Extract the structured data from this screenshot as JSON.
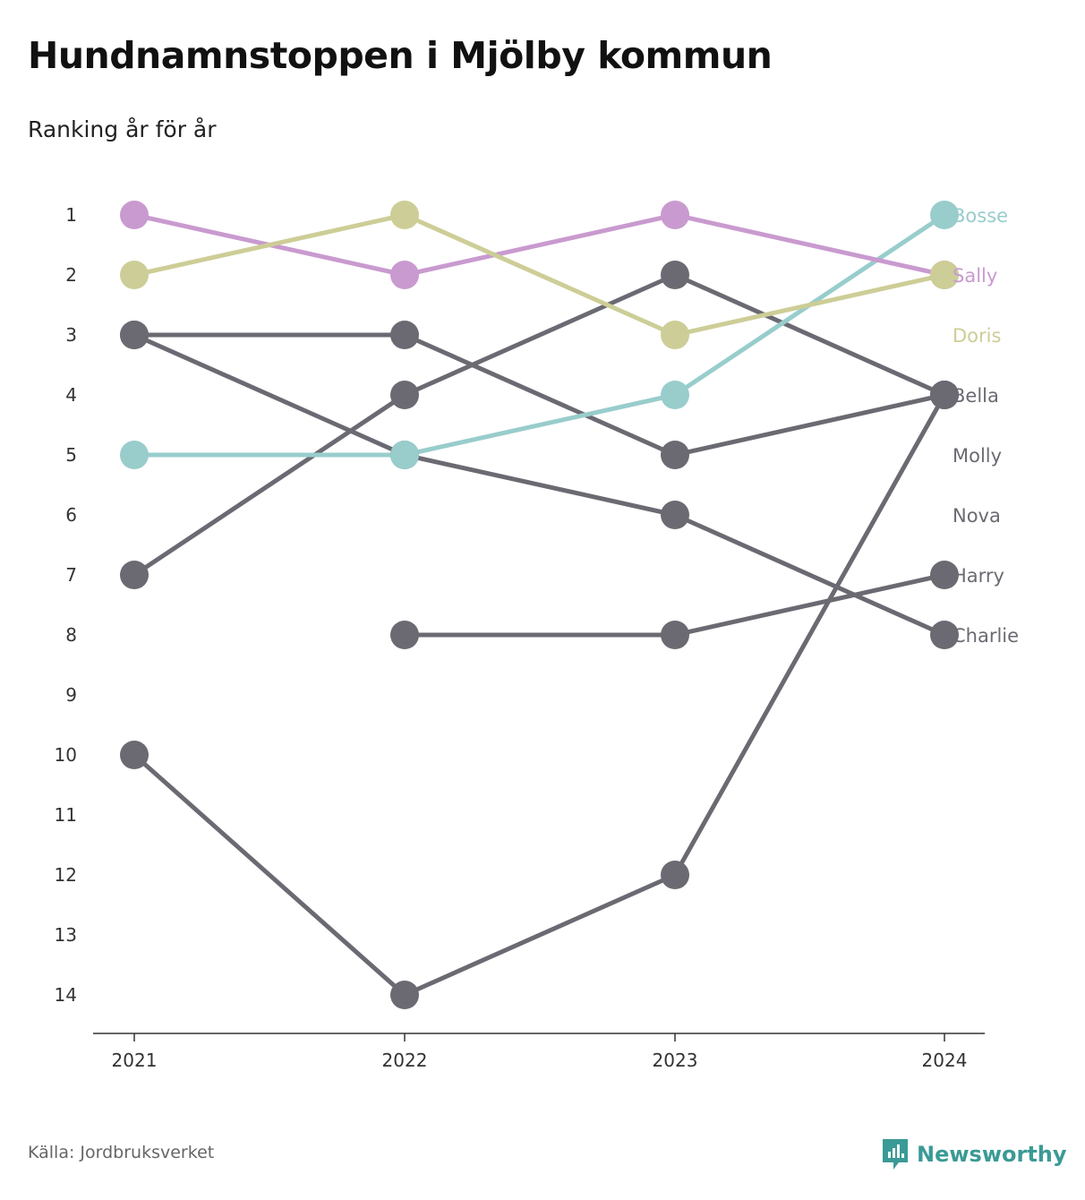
{
  "title": "Hundnamnstoppen i Mjölby kommun",
  "subtitle": "Ranking år för år",
  "source": "Källa: Jordbruksverket",
  "brand": "Newsworthy",
  "colors": {
    "pink": "#c99acf",
    "olive": "#cdcd97",
    "teal": "#98cdcc",
    "gray": "#6b6a72",
    "brand": "#3a9a96"
  },
  "chart_data": {
    "type": "line",
    "x": [
      "2021",
      "2022",
      "2023",
      "2024"
    ],
    "ylim": [
      1,
      14
    ],
    "y_inverted": true,
    "yticks": [
      "1",
      "2",
      "3",
      "4",
      "5",
      "6",
      "7",
      "8",
      "9",
      "10",
      "11",
      "12",
      "13",
      "14"
    ],
    "series": [
      {
        "name": "Bosse",
        "color": "#98cdcc",
        "values": [
          5,
          5,
          4,
          1
        ]
      },
      {
        "name": "Sally",
        "color": "#c99acf",
        "values": [
          1,
          2,
          1,
          2
        ]
      },
      {
        "name": "Doris",
        "color": "#cdcd97",
        "values": [
          2,
          1,
          3,
          2
        ]
      },
      {
        "name": "Bella",
        "color": "#6b6a72",
        "values": [
          3,
          3,
          5,
          4
        ]
      },
      {
        "name": "Molly",
        "color": "#6b6a72",
        "values": [
          7,
          4,
          2,
          4
        ]
      },
      {
        "name": "Nova",
        "color": "#6b6a72",
        "values": [
          10,
          14,
          12,
          4
        ]
      },
      {
        "name": "Harry",
        "color": "#6b6a72",
        "values": [
          null,
          8,
          8,
          7
        ]
      },
      {
        "name": "Charlie",
        "color": "#6b6a72",
        "values": [
          3,
          5,
          6,
          8
        ]
      }
    ],
    "end_labels": [
      {
        "text": "Bosse",
        "rank": 1,
        "color": "#98cdcc"
      },
      {
        "text": "Sally",
        "rank": 2,
        "color": "#c99acf"
      },
      {
        "text": "Doris",
        "rank": 3,
        "color": "#cdcd97"
      },
      {
        "text": "Bella",
        "rank": 4,
        "color": "#6b6a72"
      },
      {
        "text": "Molly",
        "rank": 5,
        "color": "#6b6a72"
      },
      {
        "text": "Nova",
        "rank": 6,
        "color": "#6b6a72"
      },
      {
        "text": "Harry",
        "rank": 7,
        "color": "#6b6a72"
      },
      {
        "text": "Charlie",
        "rank": 8,
        "color": "#6b6a72"
      }
    ],
    "grid": false,
    "legend": "end labels right"
  }
}
